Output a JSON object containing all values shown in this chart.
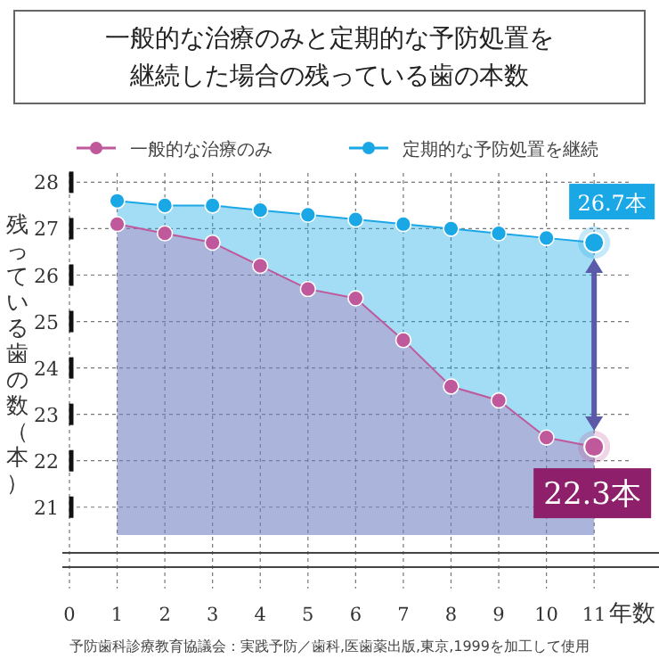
{
  "chart_data": {
    "type": "area",
    "title": "一般的な治療のみと定期的な予防処置を継続した場合の残っている歯の本数",
    "xlabel": "年数",
    "ylabel": "残っている歯の数（本）",
    "x": [
      1,
      2,
      3,
      4,
      5,
      6,
      7,
      8,
      9,
      10,
      11
    ],
    "series": [
      {
        "name": "定期的な予防処置を継続",
        "color": "#1aa7e6",
        "values": [
          27.6,
          27.5,
          27.5,
          27.4,
          27.3,
          27.2,
          27.1,
          27.0,
          26.9,
          26.8,
          26.7
        ]
      },
      {
        "name": "一般的な治療のみ",
        "color": "#c0589c",
        "values": [
          27.1,
          26.9,
          26.7,
          26.2,
          25.7,
          25.5,
          24.6,
          23.6,
          23.3,
          22.5,
          22.3
        ]
      }
    ],
    "xlim": [
      0,
      11.8
    ],
    "ylim": [
      20.4,
      28.2
    ],
    "xticks": [
      0,
      1,
      2,
      3,
      4,
      5,
      6,
      7,
      8,
      9,
      10,
      11
    ],
    "yticks": [
      21,
      22,
      23,
      24,
      25,
      26,
      27,
      28
    ],
    "grid": true,
    "legend": "top",
    "marker": "circle",
    "annotations": [
      {
        "text": "26.7本",
        "x": 11,
        "y": 26.7
      },
      {
        "text": "22.3本",
        "x": 11,
        "y": 22.3
      },
      "予防歯科診療教育協議会：実践予防／歯科,医歯薬出版,東京,1999を加工して使用"
    ]
  }
}
